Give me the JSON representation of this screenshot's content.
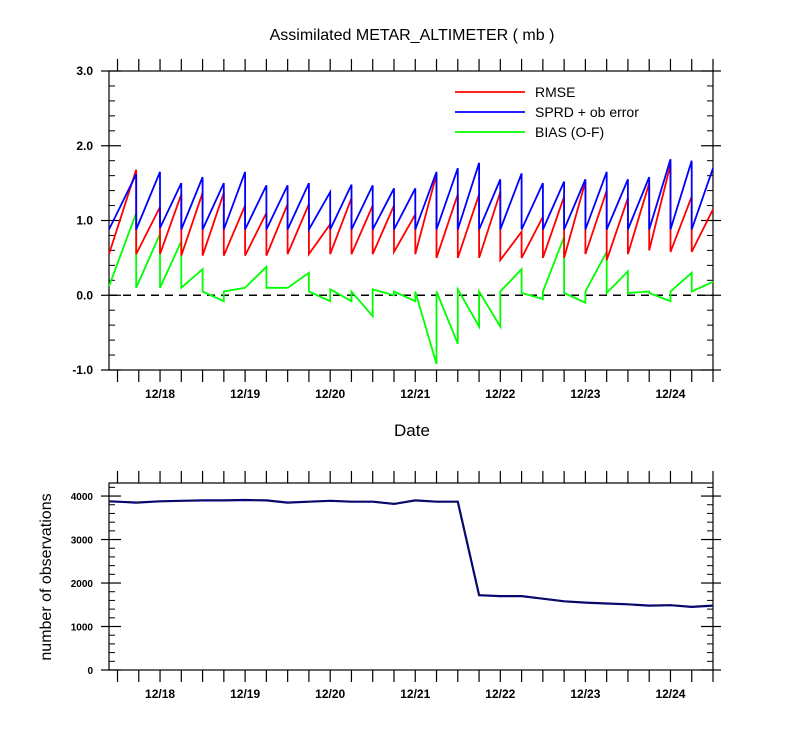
{
  "chart_data": [
    {
      "type": "line",
      "title": "Assimilated METAR_ALTIMETER ( mb )",
      "xlabel": "Date",
      "ylabel": "",
      "ylim": [
        -1.0,
        3.0
      ],
      "yticks": [
        "3.0",
        "2.0",
        "1.0",
        "0.0",
        "-1.0"
      ],
      "yticks_values": [
        3.0,
        2.0,
        1.0,
        0.0,
        -1.0
      ],
      "xlim": [
        17.4,
        24.5
      ],
      "xticks": [
        "12/18",
        "12/19",
        "12/20",
        "12/21",
        "12/22",
        "12/23",
        "12/24"
      ],
      "xticks_values": [
        18,
        19,
        20,
        21,
        22,
        23,
        24
      ],
      "zero_line": "dashed",
      "legend_position": "top-right",
      "series": [
        {
          "name": "RMSE",
          "color": "#ff0000",
          "points": [
            [
              17.4,
              0.55
            ],
            [
              17.72,
              1.68
            ],
            [
              17.72,
              0.55
            ],
            [
              18.0,
              1.18
            ],
            [
              18.0,
              0.55
            ],
            [
              18.25,
              1.35
            ],
            [
              18.25,
              0.53
            ],
            [
              18.5,
              1.37
            ],
            [
              18.5,
              0.53
            ],
            [
              18.75,
              1.37
            ],
            [
              18.75,
              0.53
            ],
            [
              19.0,
              1.2
            ],
            [
              19.0,
              0.53
            ],
            [
              19.25,
              1.1
            ],
            [
              19.25,
              0.53
            ],
            [
              19.5,
              1.22
            ],
            [
              19.5,
              0.55
            ],
            [
              19.75,
              1.22
            ],
            [
              19.75,
              0.55
            ],
            [
              20.0,
              0.95
            ],
            [
              20.0,
              0.55
            ],
            [
              20.25,
              1.3
            ],
            [
              20.25,
              0.55
            ],
            [
              20.5,
              1.2
            ],
            [
              20.5,
              0.55
            ],
            [
              20.75,
              1.2
            ],
            [
              20.75,
              0.58
            ],
            [
              21.0,
              1.08
            ],
            [
              21.0,
              0.55
            ],
            [
              21.25,
              1.62
            ],
            [
              21.25,
              0.5
            ],
            [
              21.5,
              1.35
            ],
            [
              21.5,
              0.5
            ],
            [
              21.75,
              1.35
            ],
            [
              21.75,
              0.5
            ],
            [
              22.0,
              1.38
            ],
            [
              22.0,
              0.47
            ],
            [
              22.25,
              0.85
            ],
            [
              22.25,
              0.5
            ],
            [
              22.5,
              1.05
            ],
            [
              22.5,
              0.5
            ],
            [
              22.75,
              1.32
            ],
            [
              22.75,
              0.5
            ],
            [
              23.0,
              1.52
            ],
            [
              23.0,
              0.55
            ],
            [
              23.25,
              1.4
            ],
            [
              23.25,
              0.47
            ],
            [
              23.5,
              1.3
            ],
            [
              23.5,
              0.55
            ],
            [
              23.75,
              1.5
            ],
            [
              23.75,
              0.6
            ],
            [
              24.0,
              1.75
            ],
            [
              24.0,
              0.58
            ],
            [
              24.25,
              1.32
            ],
            [
              24.25,
              0.58
            ],
            [
              24.5,
              1.15
            ]
          ]
        },
        {
          "name": "SPRD + ob error",
          "color": "#0000ff",
          "points": [
            [
              17.4,
              0.88
            ],
            [
              17.72,
              1.62
            ],
            [
              17.72,
              0.88
            ],
            [
              18.0,
              1.65
            ],
            [
              18.0,
              0.9
            ],
            [
              18.25,
              1.5
            ],
            [
              18.25,
              0.88
            ],
            [
              18.5,
              1.58
            ],
            [
              18.5,
              0.88
            ],
            [
              18.75,
              1.5
            ],
            [
              18.75,
              0.88
            ],
            [
              19.0,
              1.65
            ],
            [
              19.0,
              0.88
            ],
            [
              19.25,
              1.47
            ],
            [
              19.25,
              0.88
            ],
            [
              19.5,
              1.47
            ],
            [
              19.5,
              0.88
            ],
            [
              19.75,
              1.5
            ],
            [
              19.75,
              0.88
            ],
            [
              20.0,
              1.38
            ],
            [
              20.0,
              0.88
            ],
            [
              20.25,
              1.48
            ],
            [
              20.25,
              0.88
            ],
            [
              20.5,
              1.47
            ],
            [
              20.5,
              0.88
            ],
            [
              20.75,
              1.43
            ],
            [
              20.75,
              0.88
            ],
            [
              21.0,
              1.43
            ],
            [
              21.0,
              0.88
            ],
            [
              21.25,
              1.65
            ],
            [
              21.25,
              0.88
            ],
            [
              21.5,
              1.7
            ],
            [
              21.5,
              0.88
            ],
            [
              21.75,
              1.77
            ],
            [
              21.75,
              0.88
            ],
            [
              22.0,
              1.55
            ],
            [
              22.0,
              0.88
            ],
            [
              22.25,
              1.63
            ],
            [
              22.25,
              0.88
            ],
            [
              22.5,
              1.5
            ],
            [
              22.5,
              0.88
            ],
            [
              22.75,
              1.52
            ],
            [
              22.75,
              0.88
            ],
            [
              23.0,
              1.55
            ],
            [
              23.0,
              0.88
            ],
            [
              23.25,
              1.65
            ],
            [
              23.25,
              0.88
            ],
            [
              23.5,
              1.55
            ],
            [
              23.5,
              0.88
            ],
            [
              23.75,
              1.58
            ],
            [
              23.75,
              0.88
            ],
            [
              24.0,
              1.82
            ],
            [
              24.0,
              0.88
            ],
            [
              24.25,
              1.8
            ],
            [
              24.25,
              0.88
            ],
            [
              24.5,
              1.7
            ]
          ]
        },
        {
          "name": "BIAS (O-F)",
          "color": "#00ff00",
          "points": [
            [
              17.4,
              0.12
            ],
            [
              17.72,
              1.1
            ],
            [
              17.72,
              0.1
            ],
            [
              18.0,
              0.82
            ],
            [
              18.0,
              0.1
            ],
            [
              18.25,
              0.72
            ],
            [
              18.25,
              0.1
            ],
            [
              18.5,
              0.35
            ],
            [
              18.5,
              0.05
            ],
            [
              18.75,
              -0.08
            ],
            [
              18.75,
              0.05
            ],
            [
              19.0,
              0.1
            ],
            [
              19.0,
              0.1
            ],
            [
              19.25,
              0.38
            ],
            [
              19.25,
              0.1
            ],
            [
              19.5,
              0.1
            ],
            [
              19.5,
              0.1
            ],
            [
              19.75,
              0.3
            ],
            [
              19.75,
              0.05
            ],
            [
              20.0,
              -0.08
            ],
            [
              20.0,
              0.08
            ],
            [
              20.25,
              -0.08
            ],
            [
              20.25,
              0.05
            ],
            [
              20.5,
              -0.28
            ],
            [
              20.5,
              0.08
            ],
            [
              20.75,
              0.0
            ],
            [
              20.75,
              0.05
            ],
            [
              21.0,
              -0.08
            ],
            [
              21.0,
              0.05
            ],
            [
              21.25,
              -0.92
            ],
            [
              21.25,
              0.05
            ],
            [
              21.5,
              -0.65
            ],
            [
              21.5,
              0.08
            ],
            [
              21.75,
              -0.42
            ],
            [
              21.75,
              0.05
            ],
            [
              22.0,
              -0.42
            ],
            [
              22.0,
              0.05
            ],
            [
              22.25,
              0.35
            ],
            [
              22.25,
              0.03
            ],
            [
              22.5,
              -0.05
            ],
            [
              22.5,
              0.05
            ],
            [
              22.75,
              0.78
            ],
            [
              22.75,
              0.03
            ],
            [
              23.0,
              -0.1
            ],
            [
              23.0,
              0.05
            ],
            [
              23.25,
              0.58
            ],
            [
              23.25,
              0.03
            ],
            [
              23.5,
              0.32
            ],
            [
              23.5,
              0.03
            ],
            [
              23.75,
              0.05
            ],
            [
              23.75,
              0.03
            ],
            [
              24.0,
              -0.08
            ],
            [
              24.0,
              0.05
            ],
            [
              24.25,
              0.3
            ],
            [
              24.25,
              0.05
            ],
            [
              24.5,
              0.18
            ]
          ]
        }
      ]
    },
    {
      "type": "line",
      "title": "",
      "xlabel": "",
      "ylabel": "number of observations",
      "ylim": [
        0,
        4300
      ],
      "yticks": [
        "4000",
        "3000",
        "2000",
        "1000",
        "0"
      ],
      "yticks_values": [
        4000,
        3000,
        2000,
        1000,
        0
      ],
      "xlim": [
        17.4,
        24.5
      ],
      "xticks": [
        "12/18",
        "12/19",
        "12/20",
        "12/21",
        "12/22",
        "12/23",
        "12/24"
      ],
      "xticks_values": [
        18,
        19,
        20,
        21,
        22,
        23,
        24
      ],
      "series": [
        {
          "color": "#00008b",
          "dash_color": "#1a1a1a",
          "x": [
            17.4,
            17.72,
            18.0,
            18.25,
            18.5,
            18.75,
            19.0,
            19.25,
            19.5,
            19.75,
            20.0,
            20.25,
            20.5,
            20.75,
            21.0,
            21.25,
            21.5,
            21.75,
            22.0,
            22.25,
            22.5,
            22.75,
            23.0,
            23.25,
            23.5,
            23.75,
            24.0,
            24.25,
            24.5
          ],
          "values": [
            3880,
            3850,
            3880,
            3890,
            3900,
            3900,
            3910,
            3900,
            3850,
            3870,
            3890,
            3870,
            3870,
            3820,
            3900,
            3870,
            3870,
            1720,
            1700,
            1700,
            1640,
            1580,
            1550,
            1530,
            1510,
            1480,
            1490,
            1450,
            1480
          ]
        }
      ]
    }
  ]
}
